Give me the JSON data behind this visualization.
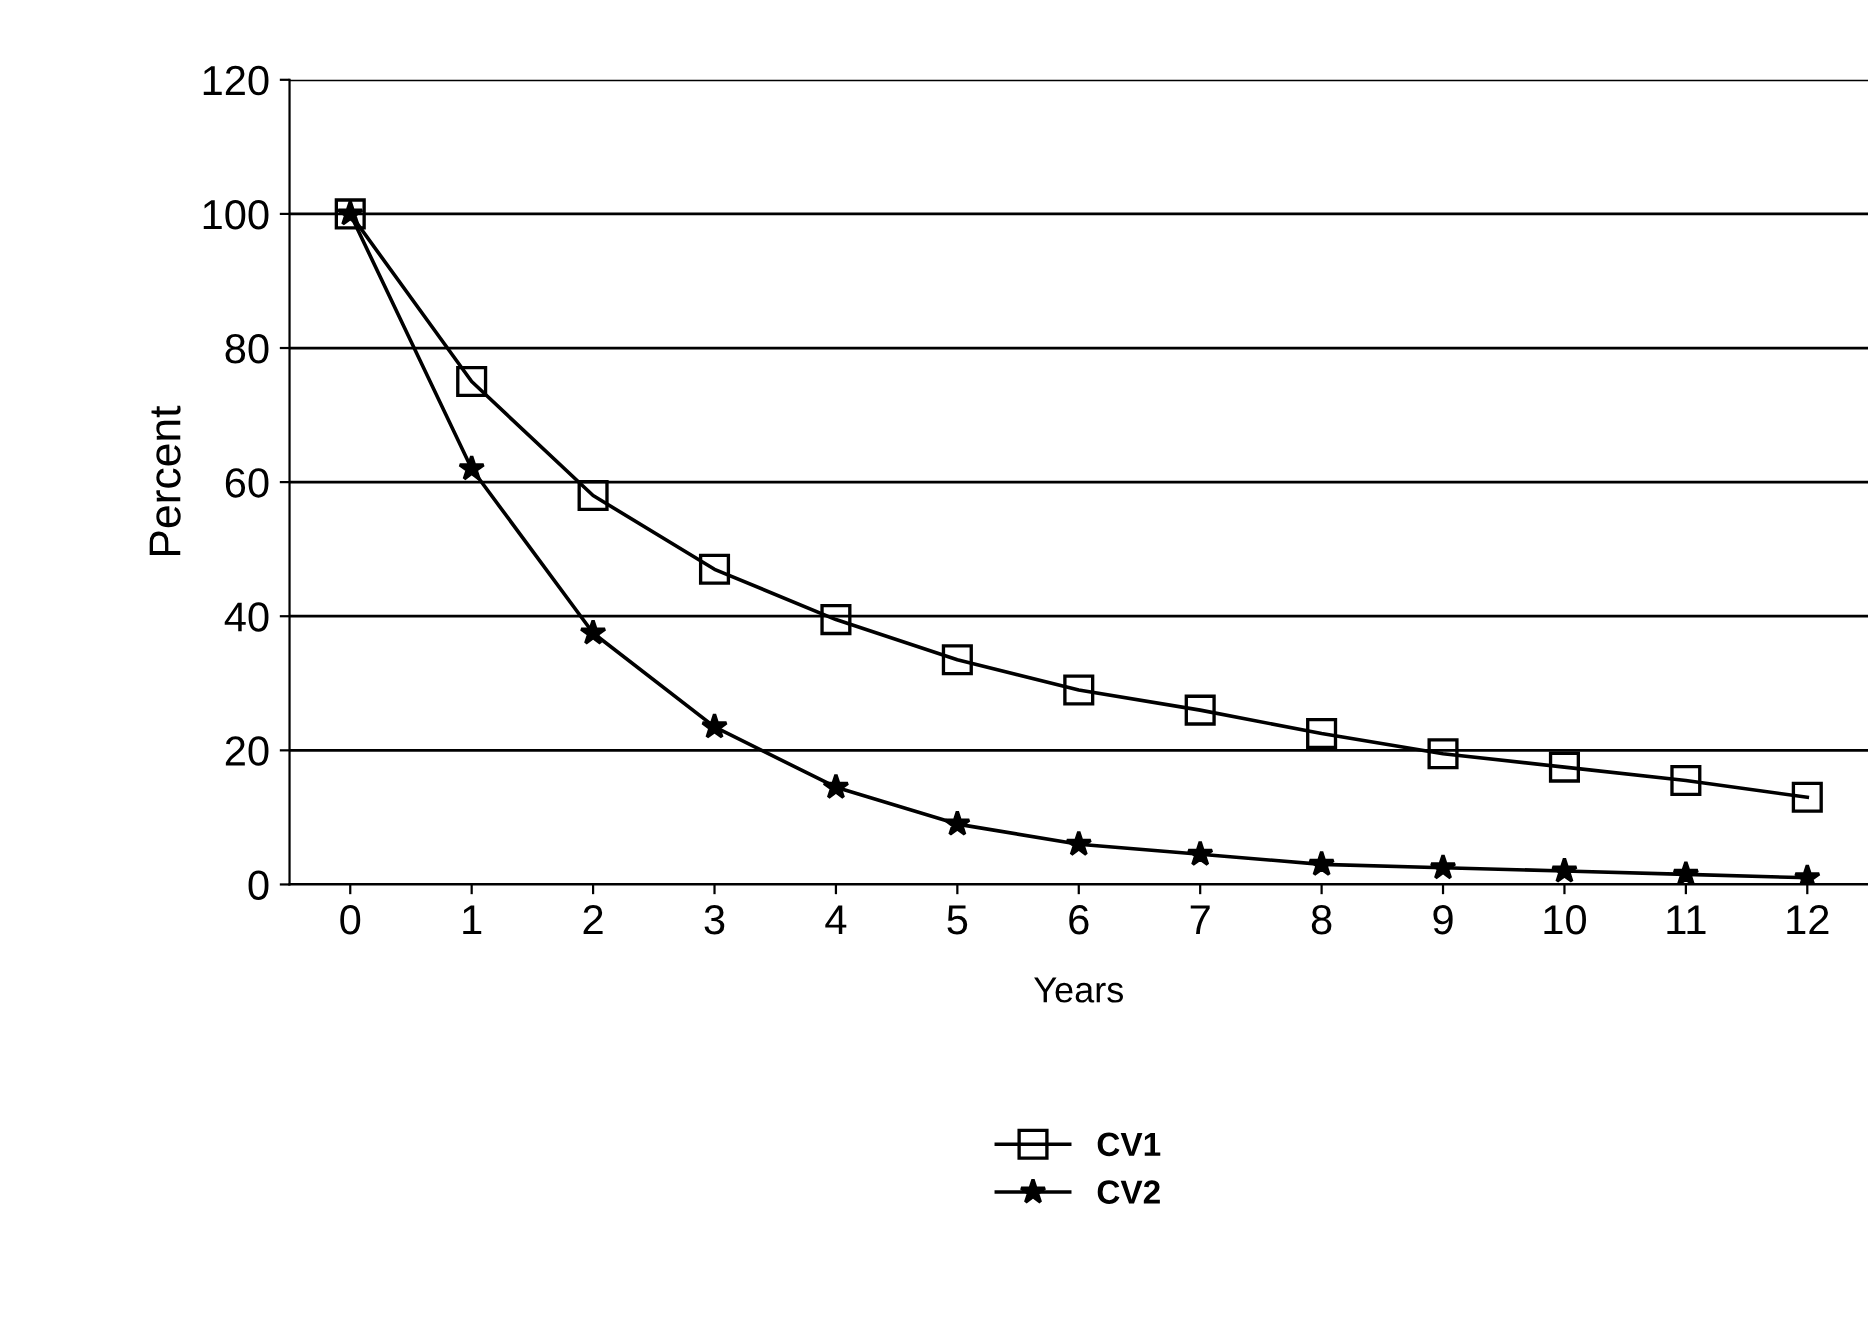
{
  "chart_data": {
    "type": "line",
    "xlabel": "Years",
    "ylabel": "Percent",
    "categories": [
      "0",
      "1",
      "2",
      "3",
      "4",
      "5",
      "6",
      "7",
      "8",
      "9",
      "10",
      "11",
      "12"
    ],
    "series": [
      {
        "name": "CV1",
        "color": "#000000",
        "marker": "square",
        "values": [
          100,
          75,
          58,
          47,
          39.5,
          33.5,
          29,
          26,
          22.5,
          19.5,
          17.5,
          15.5,
          13
        ]
      },
      {
        "name": "CV2",
        "color": "#000000",
        "marker": "star",
        "values": [
          100,
          62,
          37.5,
          23.5,
          14.5,
          9,
          6,
          4.5,
          3,
          2.5,
          2,
          1.5,
          1
        ]
      }
    ],
    "ylim": [
      0,
      120
    ],
    "yticks": [
      0,
      20,
      40,
      60,
      80,
      100,
      120
    ],
    "grid": "y",
    "legend": "bottom",
    "line_style": "solid"
  }
}
